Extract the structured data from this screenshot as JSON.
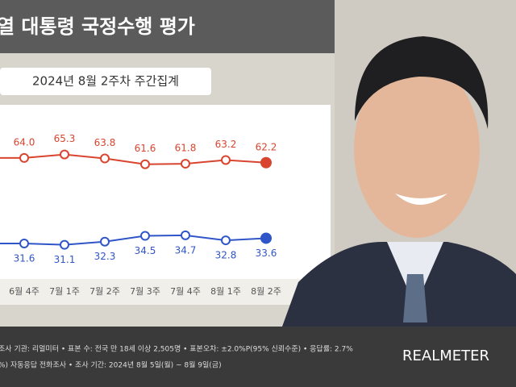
{
  "chart_data": {
    "type": "line",
    "title": "열 대통령 국정수행 평가",
    "subtitle": "2024년 8월 2주차 주간집계",
    "categories": [
      "6월 4주",
      "7월 1주",
      "7월 2주",
      "7월 3주",
      "7월 4주",
      "8월 1주",
      "8월 2주"
    ],
    "series": [
      {
        "color": "#d9442f",
        "values": [
          64.0,
          65.3,
          63.8,
          61.6,
          61.8,
          63.2,
          62.2
        ],
        "value_labels": [
          "64.0",
          "65.3",
          "63.8",
          "61.6",
          "61.8",
          "63.2",
          "62.2"
        ]
      },
      {
        "color": "#2f55c8",
        "values": [
          31.6,
          31.1,
          32.3,
          34.5,
          34.7,
          32.8,
          33.6
        ],
        "value_labels": [
          "31.6",
          "31.1",
          "32.3",
          "34.5",
          "34.7",
          "32.8",
          "33.6"
        ]
      }
    ],
    "ylim": [
      20,
      78
    ],
    "footer": [
      "조사 기관: 리얼미터 • 표본 수: 전국 만 18세 이상 2,505명 • 표본오차: ±2.0%P(95% 신뢰수준) • 응답률: 2.7%",
      "%) 자동응답 전화조사 • 조사 기간: 2024년 8월 5일(월) ~ 8월 9일(금)"
    ],
    "logo": "REALMETER"
  }
}
